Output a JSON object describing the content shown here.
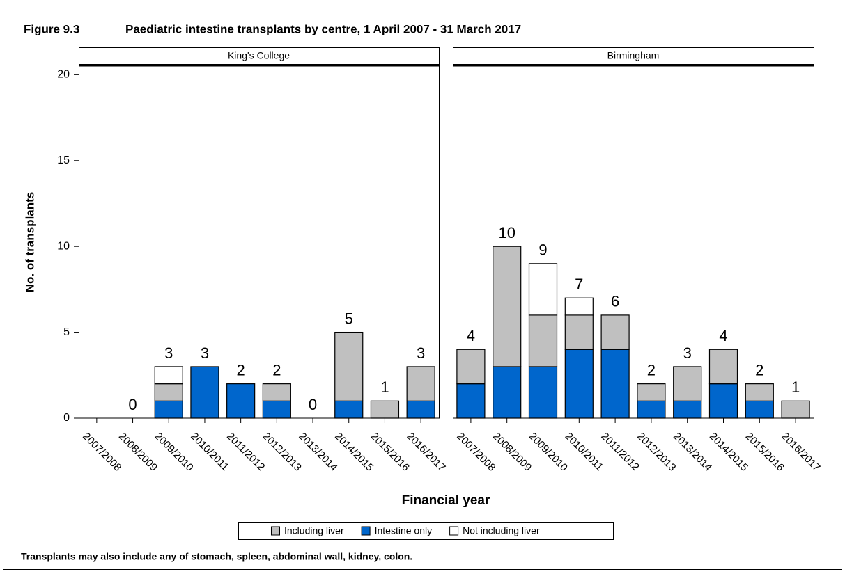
{
  "chart_data": {
    "type": "bar",
    "stacked": true,
    "figure_label": "Figure 9.3",
    "title": "Paediatric intestine transplants by centre, 1 April 2007 - 31 March 2017",
    "xlabel": "Financial year",
    "ylabel": "No. of transplants",
    "note": "Transplants may also include any of stomach, spleen, abdominal wall, kidney, colon.",
    "ylim": [
      0,
      20.5
    ],
    "yticks": [
      0,
      5,
      10,
      15,
      20
    ],
    "categories": [
      "2007/2008",
      "2008/2009",
      "2009/2010",
      "2010/2011",
      "2011/2012",
      "2012/2013",
      "2013/2014",
      "2014/2015",
      "2015/2016",
      "2016/2017"
    ],
    "series": [
      {
        "name": "Including liver",
        "color": "#c0c0c0"
      },
      {
        "name": "Intestine only",
        "color": "#0066cc"
      },
      {
        "name": "Not including liver",
        "color": "#ffffff"
      }
    ],
    "panels": [
      {
        "title": "King's College",
        "series": [
          {
            "values": [
              0,
              0,
              1,
              0,
              0,
              1,
              0,
              4,
              1,
              2
            ]
          },
          {
            "values": [
              0,
              0,
              1,
              3,
              2,
              1,
              0,
              1,
              0,
              1
            ]
          },
          {
            "values": [
              0,
              0,
              1,
              0,
              0,
              0,
              0,
              0,
              0,
              0
            ]
          }
        ],
        "totals": [
          null,
          0,
          3,
          3,
          2,
          2,
          0,
          5,
          1,
          3
        ]
      },
      {
        "title": "Birmingham",
        "series": [
          {
            "values": [
              2,
              7,
              3,
              2,
              2,
              1,
              2,
              2,
              1,
              1
            ]
          },
          {
            "values": [
              2,
              3,
              3,
              4,
              4,
              1,
              1,
              2,
              1,
              0
            ]
          },
          {
            "values": [
              0,
              0,
              3,
              1,
              0,
              0,
              0,
              0,
              0,
              0
            ]
          }
        ],
        "totals": [
          4,
          10,
          9,
          7,
          6,
          2,
          3,
          4,
          2,
          1
        ]
      }
    ]
  }
}
